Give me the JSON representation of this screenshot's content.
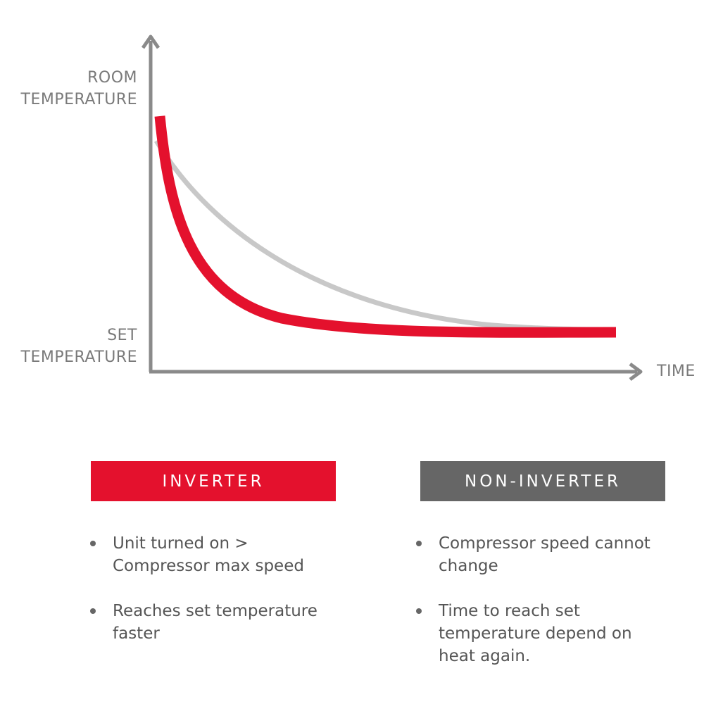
{
  "graph": {
    "y_top_label": "ROOM\nTEMPERATURE",
    "y_bottom_label": "SET\nTEMPERATURE",
    "x_label": "TIME"
  },
  "columns": [
    {
      "title": "INVERTER",
      "bullets": [
        "Unit turned on > Compressor max speed",
        "Reaches set temperature faster"
      ]
    },
    {
      "title": "NON-INVERTER",
      "bullets": [
        "Compressor speed cannot change",
        "Time to reach set temperature depend on heat again."
      ]
    }
  ]
}
